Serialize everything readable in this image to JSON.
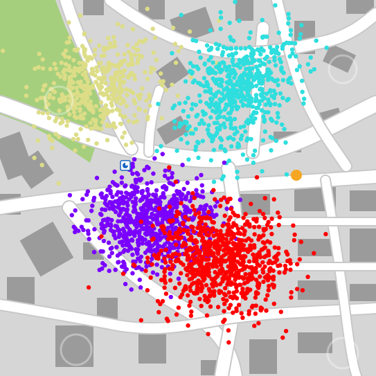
{
  "map": {
    "type": "point-cluster-map",
    "colors": {
      "land": "#d6d6d6",
      "road": "#ffffff",
      "building": "#9b9b9b",
      "park": "#a5cf7c",
      "marker_orange": "#f5a623",
      "marker_blue": "#1565c0"
    },
    "icons": {
      "location_marker": "map-pin-icon",
      "watermark": "watermark-logo"
    },
    "clusters": [
      {
        "id": "yellow",
        "color": "#dddd88",
        "approx_points": 480,
        "region": "top-left"
      },
      {
        "id": "cyan",
        "color": "#2fdede",
        "approx_points": 600,
        "region": "top-center-right"
      },
      {
        "id": "purple",
        "color": "#7a00ff",
        "approx_points": 750,
        "region": "center-left"
      },
      {
        "id": "red",
        "color": "#ff0000",
        "approx_points": 800,
        "region": "center"
      }
    ],
    "markers": [
      {
        "id": "orange-poi",
        "color": "#f5a623"
      }
    ]
  }
}
